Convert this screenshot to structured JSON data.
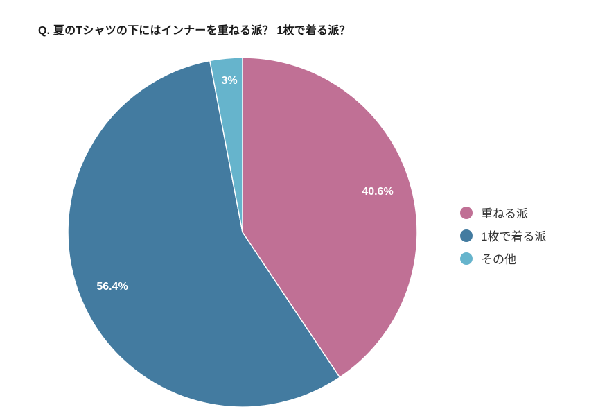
{
  "title": "Q. 夏のTシャツの下にはインナーを重ねる派？ 1枚で着る派？",
  "legend": [
    {
      "label": "重ねる派",
      "color": "#c07095"
    },
    {
      "label": "1枚で着る派",
      "color": "#437ba0"
    },
    {
      "label": "その他",
      "color": "#66b4cc"
    }
  ],
  "slice_labels": [
    "40.6%",
    "56.4%",
    "3%"
  ],
  "chart_data": {
    "type": "pie",
    "title": "Q. 夏のTシャツの下にはインナーを重ねる派？ 1枚で着る派？",
    "categories": [
      "重ねる派",
      "1枚で着る派",
      "その他"
    ],
    "values": [
      40.6,
      56.4,
      3.0
    ],
    "colors": [
      "#c07095",
      "#437ba0",
      "#66b4cc"
    ],
    "data_labels": [
      "40.6%",
      "56.4%",
      "3%"
    ],
    "legend_position": "right",
    "start_angle": "12 o'clock, clockwise"
  }
}
